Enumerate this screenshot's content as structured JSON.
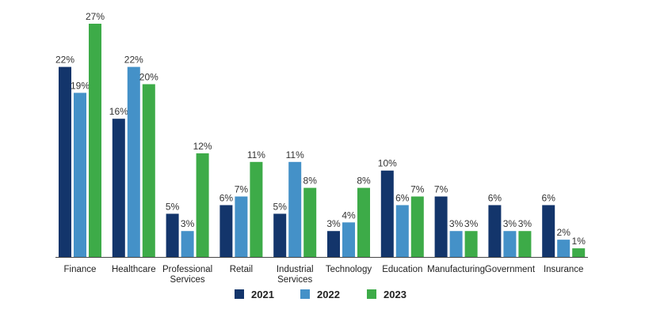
{
  "chart_data": {
    "type": "bar",
    "categories": [
      [
        "Finance"
      ],
      [
        "Healthcare"
      ],
      [
        "Professional",
        "Services"
      ],
      [
        "Retail"
      ],
      [
        "Industrial",
        "Services"
      ],
      [
        "Technology"
      ],
      [
        "Education"
      ],
      [
        "Manufacturing"
      ],
      [
        "Government"
      ],
      [
        "Insurance"
      ]
    ],
    "series": [
      {
        "name": "2021",
        "color": "#13356b",
        "values": [
          22,
          16,
          5,
          6,
          5,
          3,
          10,
          7,
          6,
          6
        ]
      },
      {
        "name": "2022",
        "color": "#4491c8",
        "values": [
          19,
          22,
          3,
          7,
          11,
          4,
          6,
          3,
          3,
          2
        ]
      },
      {
        "name": "2023",
        "color": "#3dab48",
        "values": [
          27,
          20,
          12,
          11,
          8,
          8,
          7,
          3,
          3,
          1
        ]
      }
    ],
    "value_suffix": "%",
    "ylim": [
      0,
      27
    ],
    "grid": false,
    "legend_position": "bottom-center"
  }
}
